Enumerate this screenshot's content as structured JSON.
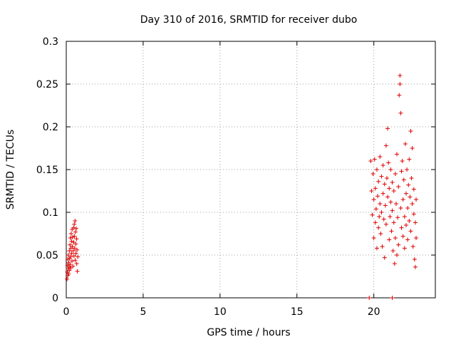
{
  "chart_data": {
    "type": "scatter",
    "title": "Day 310 of 2016, SRMTID for receiver dubo",
    "xlabel": "GPS time / hours",
    "ylabel": "SRMTID / TECUs",
    "xlim": [
      0,
      24
    ],
    "ylim": [
      0,
      0.3
    ],
    "xticks": [
      0,
      5,
      10,
      15,
      20
    ],
    "xtick_labels": [
      "0",
      "5",
      "10",
      "15",
      "20"
    ],
    "yticks": [
      0,
      0.05,
      0.1,
      0.15,
      0.2,
      0.25,
      0.3
    ],
    "ytick_labels": [
      "0",
      "0.05",
      "0.1",
      "0.15",
      "0.2",
      "0.25",
      "0.3"
    ],
    "grid": true,
    "marker": "+",
    "color": "#e00000",
    "series": [
      {
        "name": "SRMTID",
        "points": [
          [
            0.05,
            0.022
          ],
          [
            0.07,
            0.03
          ],
          [
            0.08,
            0.038
          ],
          [
            0.1,
            0.026
          ],
          [
            0.1,
            0.045
          ],
          [
            0.12,
            0.034
          ],
          [
            0.13,
            0.05
          ],
          [
            0.15,
            0.028
          ],
          [
            0.16,
            0.041
          ],
          [
            0.18,
            0.036
          ],
          [
            0.2,
            0.055
          ],
          [
            0.2,
            0.032
          ],
          [
            0.22,
            0.046
          ],
          [
            0.24,
            0.062
          ],
          [
            0.25,
            0.039
          ],
          [
            0.27,
            0.07
          ],
          [
            0.28,
            0.048
          ],
          [
            0.3,
            0.058
          ],
          [
            0.3,
            0.035
          ],
          [
            0.32,
            0.075
          ],
          [
            0.34,
            0.052
          ],
          [
            0.35,
            0.066
          ],
          [
            0.37,
            0.043
          ],
          [
            0.38,
            0.08
          ],
          [
            0.4,
            0.06
          ],
          [
            0.42,
            0.071
          ],
          [
            0.43,
            0.037
          ],
          [
            0.45,
            0.055
          ],
          [
            0.47,
            0.082
          ],
          [
            0.48,
            0.065
          ],
          [
            0.5,
            0.049
          ],
          [
            0.52,
            0.086
          ],
          [
            0.53,
            0.072
          ],
          [
            0.55,
            0.058
          ],
          [
            0.57,
            0.09
          ],
          [
            0.58,
            0.044
          ],
          [
            0.6,
            0.077
          ],
          [
            0.62,
            0.063
          ],
          [
            0.63,
            0.052
          ],
          [
            0.65,
            0.081
          ],
          [
            0.67,
            0.069
          ],
          [
            0.68,
            0.04
          ],
          [
            0.7,
            0.056
          ],
          [
            0.72,
            0.031
          ],
          [
            0.75,
            0.048
          ],
          [
            19.7,
            0.0
          ],
          [
            21.2,
            0.0
          ],
          [
            19.8,
            0.16
          ],
          [
            19.85,
            0.125
          ],
          [
            19.9,
            0.097
          ],
          [
            19.95,
            0.145
          ],
          [
            20.0,
            0.115
          ],
          [
            20.0,
            0.07
          ],
          [
            20.05,
            0.162
          ],
          [
            20.1,
            0.128
          ],
          [
            20.1,
            0.088
          ],
          [
            20.15,
            0.104
          ],
          [
            20.2,
            0.058
          ],
          [
            20.2,
            0.15
          ],
          [
            20.25,
            0.119
          ],
          [
            20.3,
            0.136
          ],
          [
            20.3,
            0.082
          ],
          [
            20.35,
            0.095
          ],
          [
            20.4,
            0.165
          ],
          [
            20.4,
            0.11
          ],
          [
            20.45,
            0.075
          ],
          [
            20.5,
            0.142
          ],
          [
            20.5,
            0.1
          ],
          [
            20.55,
            0.06
          ],
          [
            20.6,
            0.122
          ],
          [
            20.6,
            0.155
          ],
          [
            20.65,
            0.092
          ],
          [
            20.7,
            0.133
          ],
          [
            20.7,
            0.047
          ],
          [
            20.75,
            0.108
          ],
          [
            20.8,
            0.178
          ],
          [
            20.8,
            0.086
          ],
          [
            20.85,
            0.14
          ],
          [
            20.9,
            0.198
          ],
          [
            20.9,
            0.118
          ],
          [
            20.95,
            0.158
          ],
          [
            21.0,
            0.068
          ],
          [
            21.0,
            0.128
          ],
          [
            21.05,
            0.095
          ],
          [
            21.1,
            0.112
          ],
          [
            21.1,
            0.15
          ],
          [
            21.15,
            0.078
          ],
          [
            21.2,
            0.135
          ],
          [
            21.2,
            0.102
          ],
          [
            21.25,
            0.055
          ],
          [
            21.3,
            0.088
          ],
          [
            21.3,
            0.125
          ],
          [
            21.35,
            0.04
          ],
          [
            21.4,
            0.145
          ],
          [
            21.4,
            0.07
          ],
          [
            21.45,
            0.11
          ],
          [
            21.5,
            0.05
          ],
          [
            21.5,
            0.168
          ],
          [
            21.55,
            0.094
          ],
          [
            21.6,
            0.13
          ],
          [
            21.6,
            0.062
          ],
          [
            21.65,
            0.237
          ],
          [
            21.7,
            0.26
          ],
          [
            21.7,
            0.25
          ],
          [
            21.75,
            0.216
          ],
          [
            21.75,
            0.105
          ],
          [
            21.8,
            0.082
          ],
          [
            21.8,
            0.148
          ],
          [
            21.85,
            0.16
          ],
          [
            21.9,
            0.115
          ],
          [
            21.9,
            0.072
          ],
          [
            21.95,
            0.138
          ],
          [
            22.0,
            0.095
          ],
          [
            22.0,
            0.058
          ],
          [
            22.05,
            0.18
          ],
          [
            22.1,
            0.122
          ],
          [
            22.1,
            0.085
          ],
          [
            22.15,
            0.15
          ],
          [
            22.2,
            0.105
          ],
          [
            22.2,
            0.068
          ],
          [
            22.25,
            0.132
          ],
          [
            22.3,
            0.09
          ],
          [
            22.3,
            0.162
          ],
          [
            22.35,
            0.118
          ],
          [
            22.4,
            0.078
          ],
          [
            22.4,
            0.195
          ],
          [
            22.45,
            0.14
          ],
          [
            22.5,
            0.11
          ],
          [
            22.5,
            0.175
          ],
          [
            22.55,
            0.06
          ],
          [
            22.6,
            0.098
          ],
          [
            22.6,
            0.127
          ],
          [
            22.65,
            0.045
          ],
          [
            22.7,
            0.036
          ],
          [
            22.7,
            0.088
          ],
          [
            22.75,
            0.115
          ],
          [
            22.75,
            0.07
          ]
        ]
      }
    ]
  }
}
